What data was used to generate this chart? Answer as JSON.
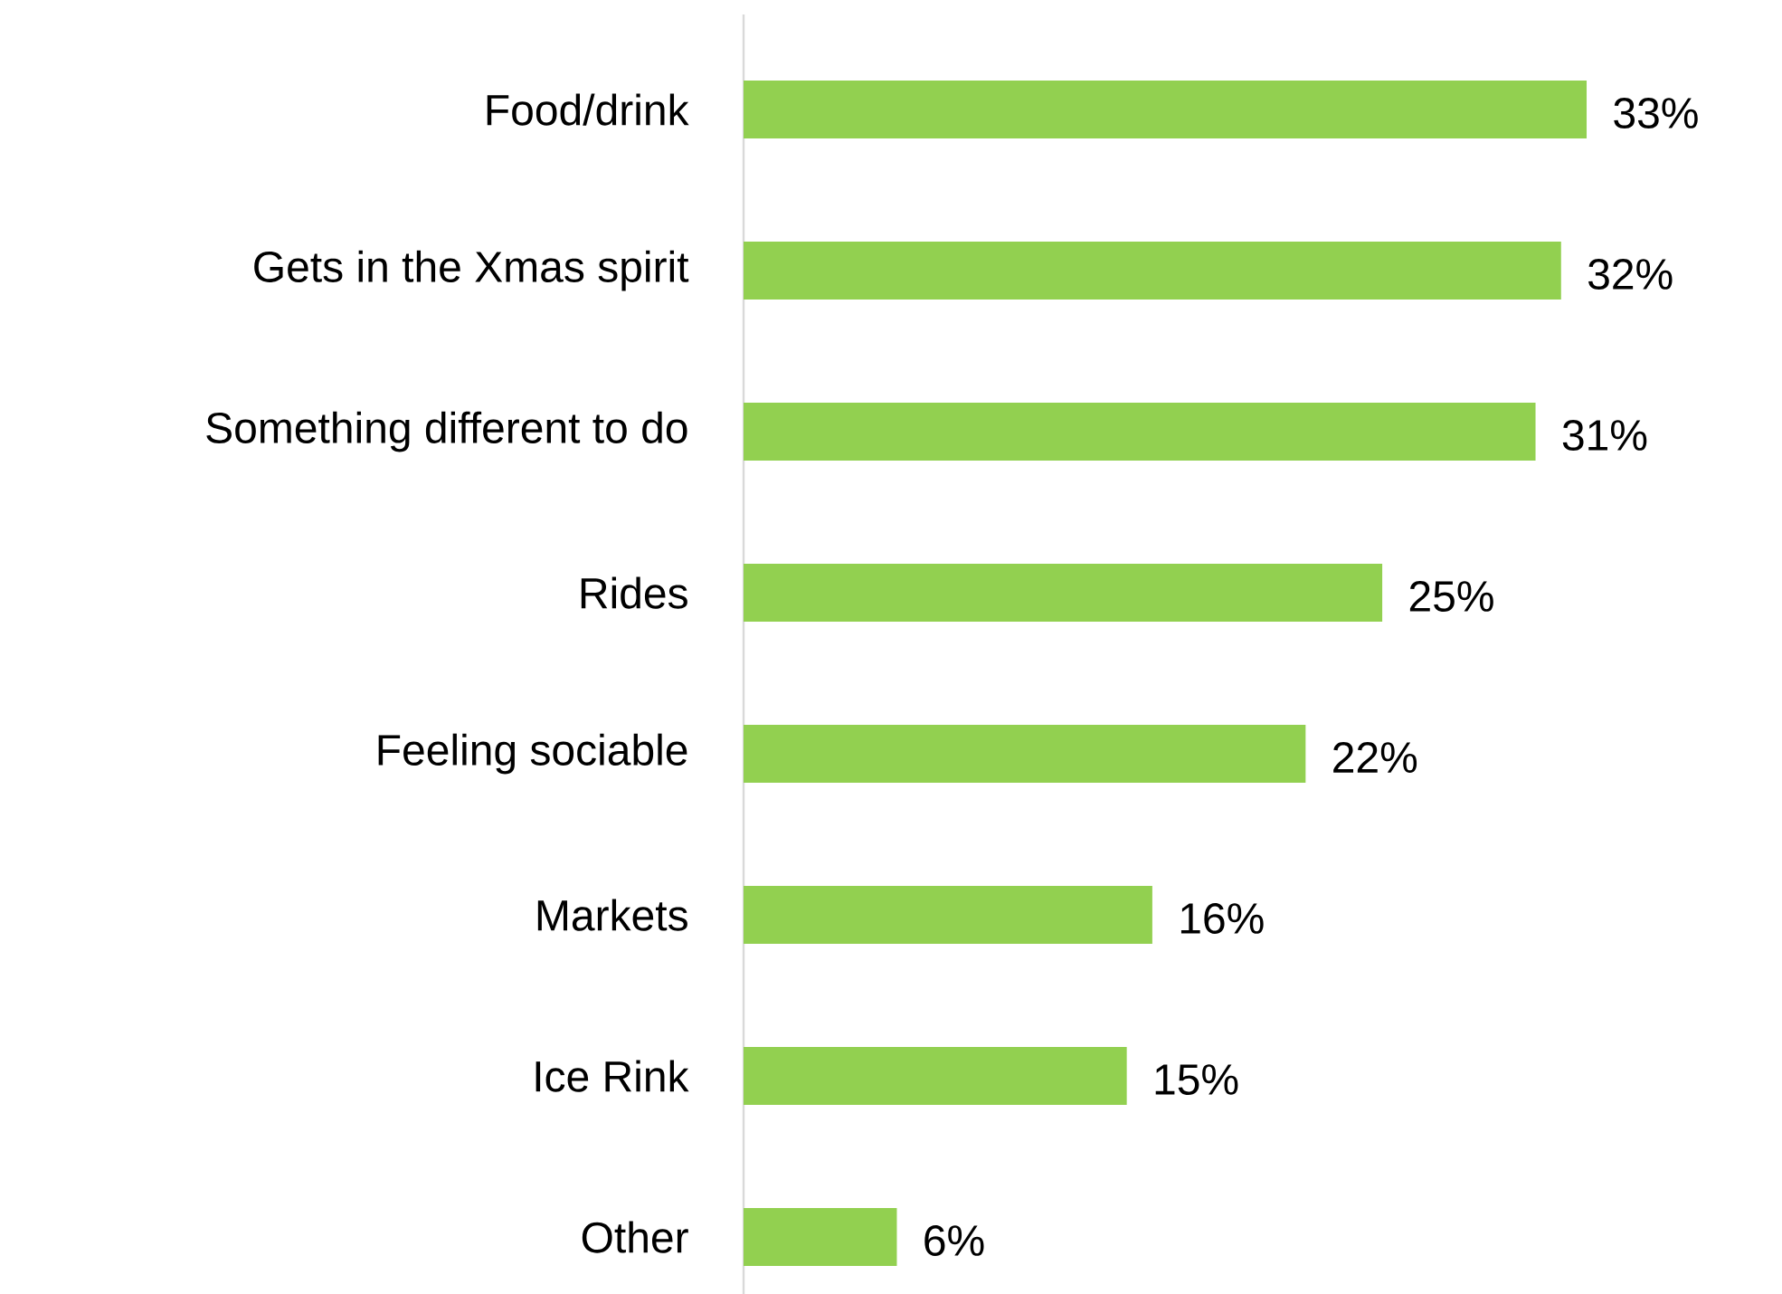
{
  "chart_data": {
    "type": "bar",
    "orientation": "horizontal",
    "categories": [
      "Food/drink",
      "Gets in the Xmas spirit",
      "Something different to do",
      "Rides",
      "Feeling sociable",
      "Markets",
      "Ice Rink",
      "Other"
    ],
    "values": [
      33,
      32,
      31,
      25,
      22,
      16,
      15,
      6
    ],
    "value_labels": [
      "33%",
      "32%",
      "31%",
      "25%",
      "22%",
      "16%",
      "15%",
      "6%"
    ],
    "color": "#92d050"
  }
}
